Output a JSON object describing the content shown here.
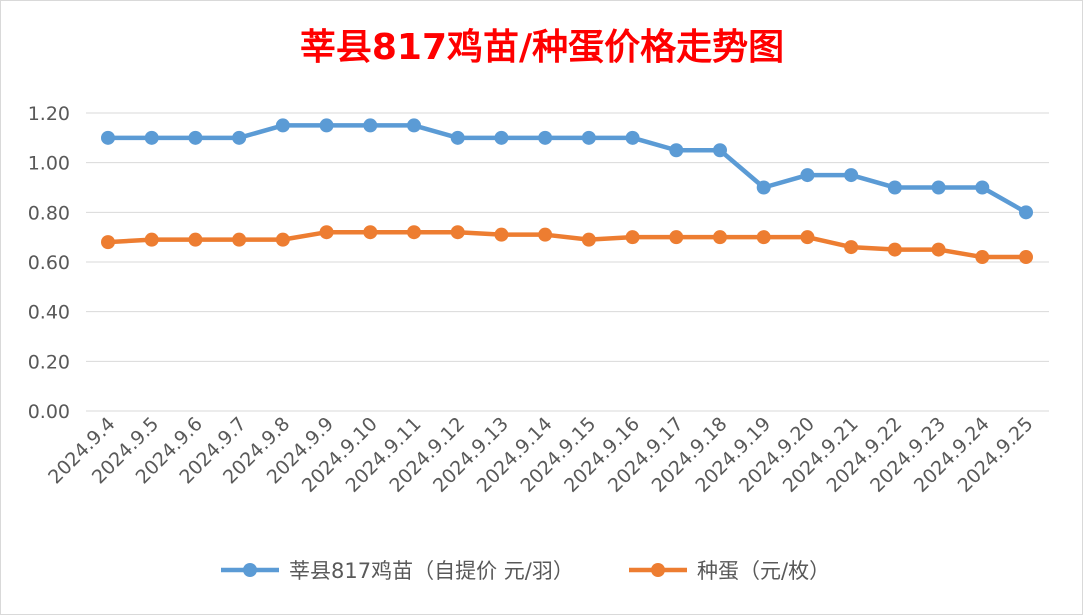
{
  "chart_data": {
    "type": "line",
    "title": "莘县817鸡苗/种蛋价格走势图",
    "categories": [
      "2024.9.4",
      "2024.9.5",
      "2024.9.6",
      "2024.9.7",
      "2024.9.8",
      "2024.9.9",
      "2024.9.10",
      "2024.9.11",
      "2024.9.12",
      "2024.9.13",
      "2024.9.14",
      "2024.9.15",
      "2024.9.16",
      "2024.9.17",
      "2024.9.18",
      "2024.9.19",
      "2024.9.20",
      "2024.9.21",
      "2024.9.22",
      "2024.9.23",
      "2024.9.24",
      "2024.9.25"
    ],
    "series": [
      {
        "name": "莘县817鸡苗（自提价 元/羽）",
        "color": "#5b9bd5",
        "values": [
          1.1,
          1.1,
          1.1,
          1.1,
          1.15,
          1.15,
          1.15,
          1.15,
          1.1,
          1.1,
          1.1,
          1.1,
          1.1,
          1.05,
          1.05,
          0.9,
          0.95,
          0.95,
          0.9,
          0.9,
          0.9,
          0.8
        ]
      },
      {
        "name": "种蛋（元/枚）",
        "color": "#ed7d31",
        "values": [
          0.68,
          0.69,
          0.69,
          0.69,
          0.69,
          0.72,
          0.72,
          0.72,
          0.72,
          0.71,
          0.71,
          0.69,
          0.7,
          0.7,
          0.7,
          0.7,
          0.7,
          0.66,
          0.65,
          0.65,
          0.62,
          0.62
        ]
      }
    ],
    "yticks": [
      "0.00",
      "0.20",
      "0.40",
      "0.60",
      "0.80",
      "1.00",
      "1.20"
    ],
    "ylim": [
      0,
      1.2
    ],
    "xlabel": "",
    "ylabel": "",
    "grid": true,
    "legend_position": "bottom",
    "title_color": "#ff0000",
    "axis_text_color": "#595959",
    "gridline_color": "#d9d9d9"
  }
}
